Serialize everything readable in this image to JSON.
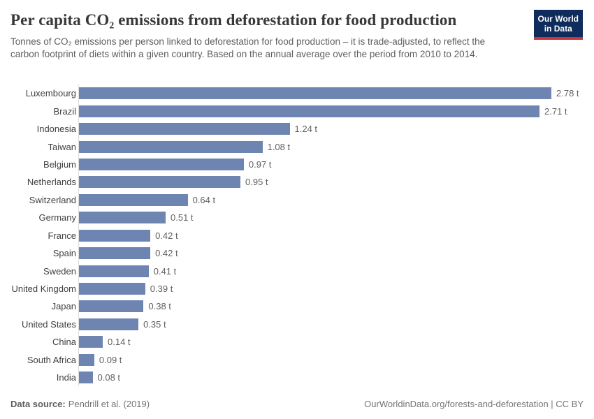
{
  "header": {
    "title": "Per capita CO₂ emissions from deforestation for food production",
    "subtitle": "Tonnes of CO₂ emissions per person linked to deforestation for food production – it is trade-adjusted, to reflect the carbon footprint of diets within a given country. Based on the annual average over the period from 2010 to 2014.",
    "logo": {
      "line1": "Our World",
      "line2": "in Data"
    }
  },
  "chart_data": {
    "type": "bar",
    "orientation": "horizontal",
    "title": "Per capita CO₂ emissions from deforestation for food production",
    "unit": "t",
    "categories": [
      "Luxembourg",
      "Brazil",
      "Indonesia",
      "Taiwan",
      "Belgium",
      "Netherlands",
      "Switzerland",
      "Germany",
      "France",
      "Spain",
      "Sweden",
      "United Kingdom",
      "Japan",
      "United States",
      "China",
      "South Africa",
      "India"
    ],
    "values": [
      2.78,
      2.71,
      1.24,
      1.08,
      0.97,
      0.95,
      0.64,
      0.51,
      0.42,
      0.42,
      0.41,
      0.39,
      0.38,
      0.35,
      0.14,
      0.09,
      0.08
    ],
    "value_labels": [
      "2.78 t",
      "2.71 t",
      "1.24 t",
      "1.08 t",
      "0.97 t",
      "0.95 t",
      "0.64 t",
      "0.51 t",
      "0.42 t",
      "0.42 t",
      "0.41 t",
      "0.39 t",
      "0.38 t",
      "0.35 t",
      "0.14 t",
      "0.09 t",
      "0.08 t"
    ],
    "xlim": [
      0,
      2.78
    ],
    "grid": false,
    "legend": false,
    "sorted": "descending"
  },
  "colors": {
    "bar": "#6e85b1",
    "axis_line": "#dcdcdc",
    "title_text": "#383838",
    "subtitle_text": "#5e5e5e",
    "category_text": "#414141",
    "value_text": "#616161",
    "footer_text": "#757575",
    "logo_background": "#0f2d5c",
    "logo_accent": "#c9353d"
  },
  "footer": {
    "source_label": "Data source:",
    "source_value": "Pendrill et al. (2019)",
    "credit": "OurWorldinData.org/forests-and-deforestation | CC BY"
  }
}
